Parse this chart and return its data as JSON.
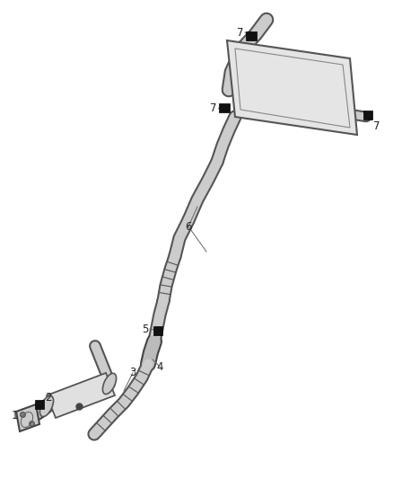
{
  "bg_color": "#ffffff",
  "line_color": "#555555",
  "dark_color": "#222222",
  "fig_width": 4.38,
  "fig_height": 5.33,
  "dpi": 100,
  "pipe_fill": "#d8d8d8",
  "pipe_edge": "#555555",
  "pipe_lw": 7,
  "pipe_olw": 1.5
}
